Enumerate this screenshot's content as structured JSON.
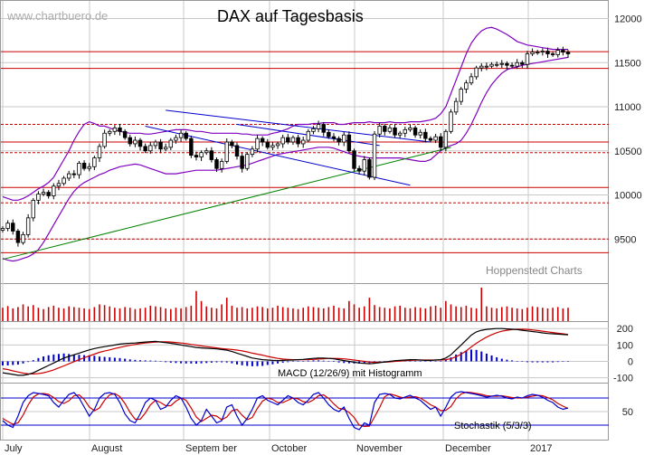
{
  "watermark": "www.chartbuero.de",
  "title": "DAX auf Tagesbasis",
  "credit": "Hoppenstedt Charts",
  "colors": {
    "grid": "#c8c8c8",
    "support_line": "#cc0000",
    "up_candle": "#ffffff",
    "down_candle": "#000000",
    "bollinger": "#8000c0",
    "trend_blue": "#0000cc",
    "trend_green": "#008000",
    "volume": "#cc0000",
    "macd": "#000000",
    "signal": "#cc0000",
    "histogram": "#0000cc",
    "stoch_k": "#0000cc",
    "stoch_d": "#cc0000",
    "stoch_band": "#0000cc"
  },
  "chart_data": [
    {
      "type": "candlestick",
      "name": "price",
      "title": "DAX auf Tagesbasis",
      "ylim": [
        9000,
        12200
      ],
      "yticks": [
        9500,
        10000,
        10500,
        11000,
        11500,
        12000
      ],
      "x_months": [
        "July",
        "August",
        "September",
        "October",
        "November",
        "December",
        "2017"
      ],
      "month_labels": [
        "July",
        "August",
        "Septem ber",
        "October",
        "November",
        "December",
        "2017"
      ],
      "horizontal_levels_solid": [
        11625,
        11435,
        10600,
        10085,
        9345
      ],
      "horizontal_levels_dashed": [
        10800,
        10480,
        9910,
        9500
      ],
      "close_series": [
        9620,
        9680,
        9590,
        9460,
        9550,
        9740,
        9940,
        10010,
        10030,
        9990,
        10100,
        10130,
        10190,
        10240,
        10230,
        10360,
        10300,
        10320,
        10420,
        10550,
        10700,
        10720,
        10760,
        10720,
        10650,
        10580,
        10620,
        10550,
        10500,
        10560,
        10600,
        10520,
        10540,
        10620,
        10650,
        10700,
        10640,
        10450,
        10430,
        10480,
        10500,
        10400,
        10300,
        10380,
        10600,
        10560,
        10440,
        10300,
        10460,
        10520,
        10640,
        10600,
        10540,
        10560,
        10580,
        10650,
        10600,
        10650,
        10580,
        10620,
        10720,
        10750,
        10800,
        10710,
        10660,
        10640,
        10600,
        10680,
        10500,
        10300,
        10270,
        10400,
        10200,
        10690,
        10780,
        10720,
        10760,
        10680,
        10700,
        10740,
        10760,
        10680,
        10710,
        10640,
        10620,
        10660,
        10540,
        10720,
        10940,
        11060,
        11200,
        11270,
        11340,
        11440,
        11460,
        11460,
        11480,
        11480,
        11490,
        11470,
        11460,
        11500,
        11480,
        11600,
        11620,
        11620,
        11630,
        11600,
        11590,
        11640,
        11620,
        11600
      ],
      "bollinger_upper": [
        9980,
        9960,
        9940,
        9940,
        9960,
        9990,
        10030,
        10070,
        10100,
        10140,
        10200,
        10300,
        10400,
        10500,
        10620,
        10720,
        10800,
        10830,
        10810,
        10780,
        10780,
        10760,
        10740,
        10720,
        10710,
        10700,
        10700,
        10700,
        10690,
        10690,
        10700,
        10710,
        10720,
        10730,
        10740,
        10740,
        10740,
        10730,
        10720,
        10720,
        10710,
        10700,
        10700,
        10700,
        10700,
        10700,
        10700,
        10690,
        10690,
        10680,
        10680,
        10680,
        10680,
        10700,
        10710,
        10730,
        10750,
        10780,
        10800,
        10800,
        10800,
        10810,
        10810,
        10820,
        10820,
        10820,
        10800,
        10800,
        10810,
        10820,
        10820,
        10820,
        10830,
        10820,
        10820,
        10820,
        10830,
        10820,
        10820,
        10820,
        10830,
        10830,
        10830,
        10840,
        10850,
        10870,
        10920,
        11000,
        11150,
        11300,
        11450,
        11600,
        11720,
        11800,
        11860,
        11890,
        11900,
        11880,
        11850,
        11820,
        11780,
        11740,
        11720,
        11700,
        11690,
        11680,
        11670,
        11660,
        11650,
        11650,
        11650,
        11650
      ],
      "bollinger_lower": [
        9280,
        9260,
        9250,
        9260,
        9280,
        9300,
        9330,
        9380,
        9460,
        9560,
        9660,
        9760,
        9860,
        9960,
        10040,
        10100,
        10140,
        10170,
        10200,
        10230,
        10250,
        10280,
        10300,
        10320,
        10330,
        10340,
        10350,
        10340,
        10320,
        10300,
        10280,
        10260,
        10240,
        10240,
        10240,
        10250,
        10260,
        10270,
        10280,
        10280,
        10280,
        10280,
        10280,
        10290,
        10300,
        10310,
        10320,
        10330,
        10340,
        10360,
        10380,
        10400,
        10420,
        10440,
        10460,
        10470,
        10480,
        10490,
        10500,
        10510,
        10520,
        10530,
        10540,
        10540,
        10540,
        10530,
        10510,
        10490,
        10470,
        10450,
        10440,
        10430,
        10420,
        10420,
        10420,
        10420,
        10420,
        10420,
        10420,
        10410,
        10400,
        10390,
        10380,
        10380,
        10400,
        10450,
        10500,
        10540,
        10560,
        10580,
        10620,
        10700,
        10800,
        10920,
        11050,
        11160,
        11250,
        11320,
        11380,
        11420,
        11440,
        11450,
        11470,
        11480,
        11490,
        11500,
        11510,
        11520,
        11530,
        11540,
        11550,
        11560
      ],
      "trend_green": [
        [
          0,
          9270
        ],
        [
          88,
          10540
        ]
      ],
      "trend_blue_upper": [
        [
          32,
          10960
        ],
        [
          84,
          10600
        ]
      ],
      "trend_blue_lower": [
        [
          28,
          10780
        ],
        [
          80,
          10110
        ]
      ],
      "trend_blue_mid": [
        [
          46,
          10800
        ],
        [
          74,
          10560
        ]
      ]
    },
    {
      "type": "bar",
      "name": "volume",
      "values": [
        40,
        45,
        38,
        42,
        50,
        44,
        48,
        40,
        36,
        42,
        46,
        40,
        38,
        44,
        42,
        40,
        38,
        36,
        42,
        50,
        48,
        44,
        40,
        38,
        42,
        40,
        36,
        38,
        40,
        46,
        44,
        42,
        38,
        36,
        40,
        38,
        42,
        46,
        90,
        60,
        44,
        40,
        38,
        50,
        70,
        46,
        40,
        42,
        38,
        40,
        44,
        42,
        38,
        40,
        46,
        42,
        40,
        38,
        36,
        40,
        44,
        42,
        40,
        38,
        42,
        46,
        40,
        38,
        60,
        50,
        40,
        44,
        70,
        48,
        42,
        40,
        38,
        44,
        46,
        40,
        38,
        42,
        40,
        38,
        44,
        46,
        40,
        60,
        50,
        44,
        42,
        46,
        40,
        38,
        100,
        44,
        40,
        38,
        42,
        44,
        40,
        38,
        36,
        40,
        44,
        42,
        40,
        38,
        40,
        42,
        38,
        40
      ]
    },
    {
      "type": "line",
      "name": "macd",
      "caption": "MACD (12/26/9) mit Histogramm",
      "ylim": [
        -130,
        240
      ],
      "yticks": [
        200,
        100,
        0,
        -100
      ],
      "macd": [
        -70,
        -75,
        -80,
        -85,
        -85,
        -80,
        -70,
        -55,
        -40,
        -25,
        -10,
        5,
        20,
        30,
        40,
        50,
        60,
        70,
        78,
        84,
        90,
        95,
        100,
        105,
        108,
        110,
        112,
        115,
        118,
        120,
        122,
        118,
        114,
        110,
        105,
        100,
        95,
        90,
        85,
        82,
        80,
        78,
        76,
        72,
        68,
        60,
        50,
        40,
        30,
        20,
        15,
        10,
        8,
        6,
        5,
        6,
        7,
        8,
        10,
        12,
        15,
        18,
        20,
        20,
        18,
        15,
        10,
        5,
        0,
        -5,
        -10,
        -12,
        -15,
        -12,
        -8,
        -4,
        0,
        4,
        6,
        8,
        10,
        10,
        8,
        6,
        6,
        8,
        10,
        20,
        40,
        70,
        100,
        130,
        160,
        180,
        190,
        195,
        198,
        200,
        200,
        198,
        196,
        194,
        190,
        186,
        182,
        178,
        174,
        170,
        168,
        166,
        164,
        162
      ],
      "signal": [
        -45,
        -50,
        -58,
        -65,
        -72,
        -76,
        -77,
        -75,
        -70,
        -62,
        -52,
        -40,
        -28,
        -15,
        -2,
        10,
        22,
        33,
        44,
        55,
        63,
        70,
        78,
        85,
        92,
        98,
        103,
        108,
        112,
        115,
        118,
        119,
        119,
        118,
        115,
        112,
        108,
        103,
        99,
        94,
        90,
        86,
        82,
        78,
        75,
        72,
        69,
        64,
        58,
        50,
        44,
        38,
        30,
        24,
        18,
        14,
        12,
        10,
        10,
        10,
        11,
        12,
        14,
        16,
        18,
        18,
        17,
        15,
        12,
        8,
        4,
        0,
        -4,
        -6,
        -6,
        -5,
        -3,
        0,
        2,
        4,
        6,
        7,
        8,
        8,
        8,
        8,
        8,
        10,
        16,
        28,
        44,
        64,
        88,
        110,
        130,
        148,
        162,
        175,
        184,
        190,
        194,
        196,
        196,
        195,
        192,
        188,
        184,
        180,
        176,
        172,
        168,
        164
      ],
      "histogram": [
        -25,
        -25,
        -22,
        -20,
        -13,
        -4,
        7,
        20,
        30,
        37,
        42,
        45,
        48,
        45,
        42,
        40,
        38,
        37,
        34,
        29,
        27,
        25,
        22,
        20,
        16,
        12,
        9,
        7,
        6,
        5,
        4,
        -1,
        -5,
        -8,
        -10,
        -12,
        -13,
        -13,
        -14,
        -12,
        -10,
        -8,
        -6,
        -6,
        -7,
        -12,
        -19,
        -24,
        -28,
        -30,
        -29,
        -28,
        -22,
        -18,
        -13,
        -8,
        -5,
        -2,
        0,
        2,
        4,
        6,
        6,
        4,
        0,
        -3,
        -7,
        -10,
        -12,
        -13,
        -14,
        -12,
        -11,
        -6,
        -2,
        1,
        3,
        4,
        4,
        4,
        4,
        3,
        0,
        -2,
        -2,
        0,
        2,
        10,
        24,
        42,
        56,
        66,
        72,
        70,
        60,
        47,
        36,
        25,
        16,
        10,
        6,
        2,
        -2,
        -5,
        -6,
        -6,
        -6,
        -6,
        -6,
        -4,
        -2,
        0
      ]
    },
    {
      "type": "line",
      "name": "stochastic",
      "caption": "Stochastik (5/3/3)",
      "ylim": [
        0,
        100
      ],
      "yticks": [
        50
      ],
      "bands": [
        80,
        20
      ],
      "k": [
        30,
        20,
        15,
        40,
        70,
        85,
        92,
        90,
        88,
        85,
        70,
        60,
        75,
        88,
        92,
        80,
        60,
        40,
        55,
        80,
        90,
        92,
        88,
        70,
        45,
        30,
        25,
        45,
        70,
        80,
        75,
        55,
        60,
        75,
        85,
        80,
        60,
        35,
        20,
        30,
        55,
        40,
        25,
        30,
        60,
        65,
        40,
        20,
        35,
        55,
        80,
        85,
        75,
        70,
        65,
        75,
        85,
        80,
        70,
        65,
        75,
        88,
        92,
        80,
        65,
        55,
        50,
        60,
        35,
        15,
        10,
        25,
        20,
        70,
        88,
        90,
        88,
        80,
        78,
        82,
        86,
        80,
        75,
        65,
        55,
        60,
        40,
        60,
        82,
        92,
        94,
        92,
        90,
        88,
        85,
        82,
        84,
        86,
        84,
        80,
        78,
        82,
        80,
        85,
        88,
        86,
        82,
        75,
        70,
        60,
        55,
        58
      ],
      "d": [
        35,
        28,
        22,
        25,
        42,
        65,
        82,
        89,
        90,
        88,
        81,
        72,
        68,
        74,
        85,
        87,
        77,
        60,
        52,
        58,
        75,
        87,
        90,
        83,
        68,
        48,
        33,
        33,
        47,
        65,
        75,
        70,
        63,
        63,
        73,
        80,
        75,
        58,
        38,
        28,
        35,
        42,
        40,
        32,
        38,
        52,
        55,
        42,
        32,
        37,
        57,
        73,
        80,
        77,
        70,
        70,
        75,
        80,
        78,
        72,
        70,
        76,
        85,
        87,
        79,
        67,
        57,
        55,
        48,
        37,
        20,
        17,
        18,
        38,
        59,
        83,
        89,
        86,
        82,
        80,
        82,
        83,
        80,
        73,
        65,
        60,
        52,
        53,
        61,
        78,
        89,
        93,
        92,
        90,
        88,
        85,
        84,
        84,
        85,
        83,
        81,
        80,
        80,
        82,
        84,
        86,
        85,
        81,
        76,
        68,
        62,
        57
      ]
    }
  ]
}
